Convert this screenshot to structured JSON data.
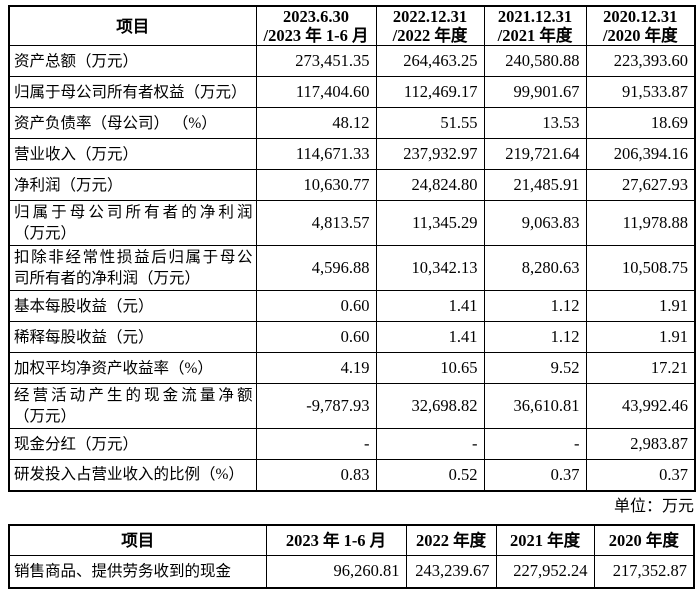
{
  "unit_note": "单位：万元",
  "financial_table": {
    "headers": [
      {
        "lines": [
          "项目"
        ]
      },
      {
        "lines": [
          "2023.6.30",
          "/2023 年 1-6 月"
        ]
      },
      {
        "lines": [
          "2022.12.31",
          "/2022 年度"
        ]
      },
      {
        "lines": [
          "2021.12.31",
          "/2021 年度"
        ]
      },
      {
        "lines": [
          "2020.12.31",
          "/2020 年度"
        ]
      }
    ],
    "rows": [
      {
        "label_lines": [
          "资产总额（万元）"
        ],
        "values": [
          "273,451.35",
          "264,463.25",
          "240,580.88",
          "223,393.60"
        ]
      },
      {
        "label_lines": [
          "归属于母公司所有者权益（万元）"
        ],
        "values": [
          "117,404.60",
          "112,469.17",
          "99,901.67",
          "91,533.87"
        ]
      },
      {
        "label_lines": [
          "资产负债率（母公司） （%）"
        ],
        "values": [
          "48.12",
          "51.55",
          "13.53",
          "18.69"
        ]
      },
      {
        "label_lines": [
          "营业收入（万元）"
        ],
        "values": [
          "114,671.33",
          "237,932.97",
          "219,721.64",
          "206,394.16"
        ]
      },
      {
        "label_lines": [
          "净利润（万元）"
        ],
        "values": [
          "10,630.77",
          "24,824.80",
          "21,485.91",
          "27,627.93"
        ]
      },
      {
        "label_lines": [
          "归属于母公司所有者的净利润",
          "（万元）"
        ],
        "values": [
          "4,813.57",
          "11,345.29",
          "9,063.83",
          "11,978.88"
        ]
      },
      {
        "label_lines": [
          "扣除非经常性损益后归属于母公",
          "司所有者的净利润（万元）"
        ],
        "values": [
          "4,596.88",
          "10,342.13",
          "8,280.63",
          "10,508.75"
        ]
      },
      {
        "label_lines": [
          "基本每股收益（元）"
        ],
        "values": [
          "0.60",
          "1.41",
          "1.12",
          "1.91"
        ]
      },
      {
        "label_lines": [
          "稀释每股收益（元）"
        ],
        "values": [
          "0.60",
          "1.41",
          "1.12",
          "1.91"
        ]
      },
      {
        "label_lines": [
          "加权平均净资产收益率（%）"
        ],
        "values": [
          "4.19",
          "10.65",
          "9.52",
          "17.21"
        ]
      },
      {
        "label_lines": [
          "经营活动产生的现金流量净额",
          "（万元）"
        ],
        "values": [
          "-9,787.93",
          "32,698.82",
          "36,610.81",
          "43,992.46"
        ]
      },
      {
        "label_lines": [
          "现金分红（万元）"
        ],
        "values": [
          "-",
          "-",
          "-",
          "2,983.87"
        ]
      },
      {
        "label_lines": [
          "研发投入占营业收入的比例（%）"
        ],
        "values": [
          "0.83",
          "0.52",
          "0.37",
          "0.37"
        ]
      }
    ]
  },
  "cashflow_table": {
    "headers": [
      {
        "lines": [
          "项目"
        ]
      },
      {
        "lines": [
          "2023 年 1-6 月"
        ]
      },
      {
        "lines": [
          "2022 年度"
        ]
      },
      {
        "lines": [
          "2021 年度"
        ]
      },
      {
        "lines": [
          "2020 年度"
        ]
      }
    ],
    "rows": [
      {
        "label_lines": [
          "销售商品、提供劳务收到的现金"
        ],
        "values": [
          "96,260.81",
          "243,239.67",
          "227,952.24",
          "217,352.87"
        ]
      }
    ]
  }
}
